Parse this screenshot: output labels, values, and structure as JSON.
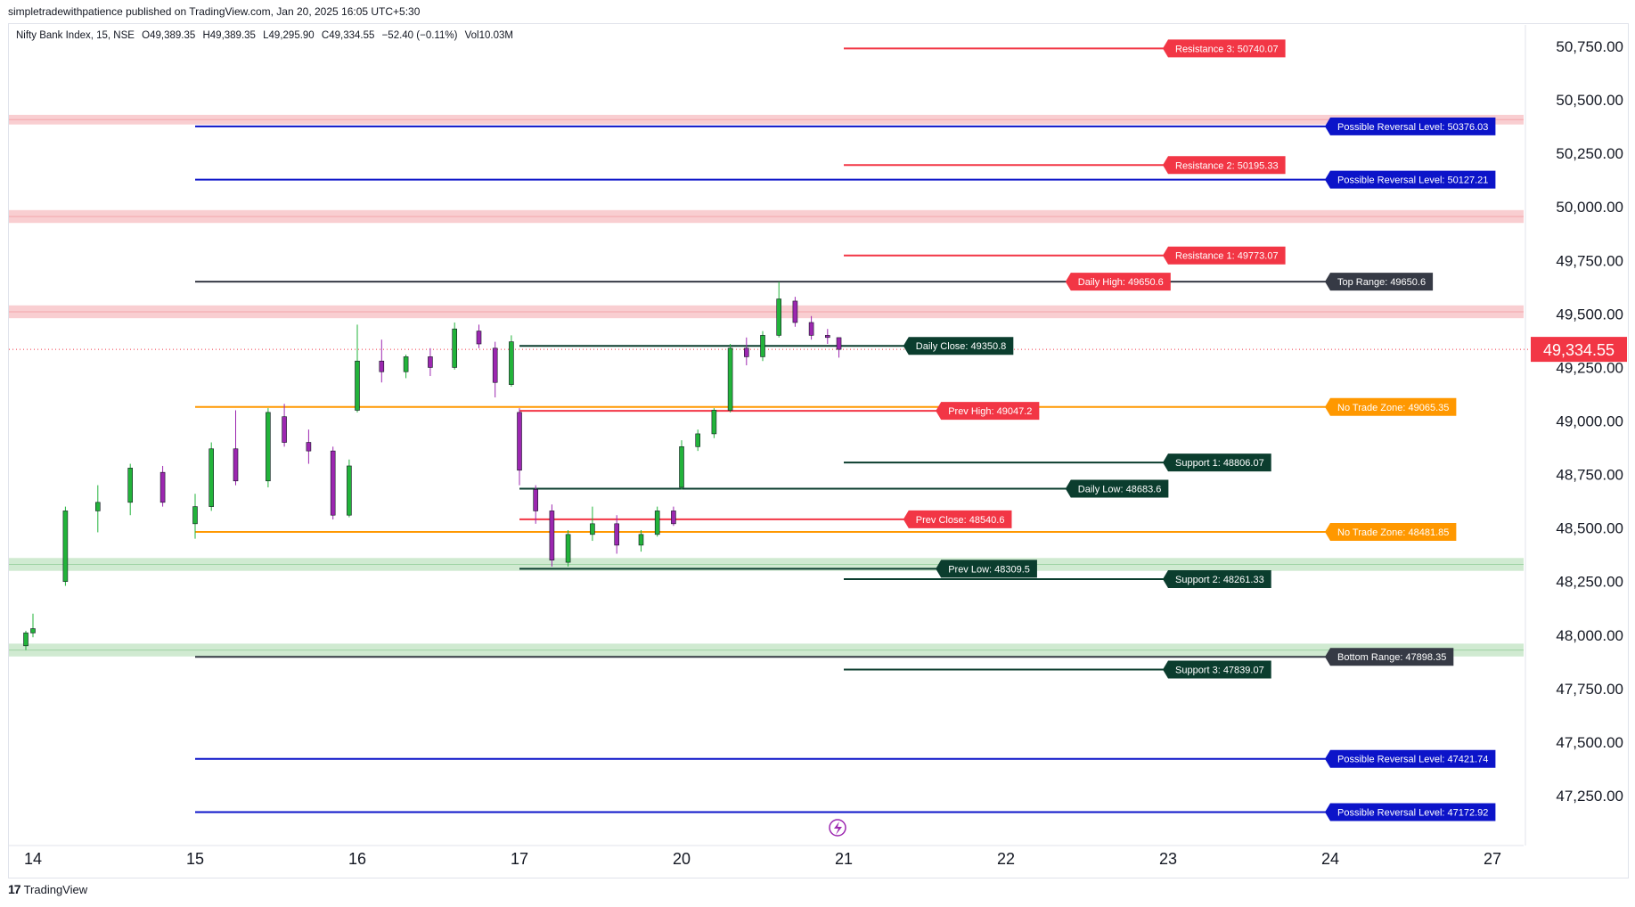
{
  "header": {
    "published": "simpletradewithpatience published on TradingView.com, Jan 20, 2025 16:05 UTC+5:30"
  },
  "legend": {
    "symbol": "Nifty Bank Index, 15, NSE",
    "open": "O49,389.35",
    "high": "H49,389.35",
    "low": "L49,295.90",
    "close": "C49,334.55",
    "change": "−52.40 (−0.11%)",
    "volume": "Vol10.03M"
  },
  "footer": {
    "brand": "TradingView",
    "logo_text": "17"
  },
  "colors": {
    "up": "#089981",
    "up_fill": "#26c94a",
    "down": "#9c27b0",
    "red": "#f23645",
    "blue": "#0c14c9",
    "orange": "#ff9800",
    "darkgreen": "#0b3d2e",
    "black": "#131722",
    "pinkzone": "#f8c6c9",
    "greenzone": "#c8e6c9"
  },
  "chart_data": {
    "type": "candlestick",
    "title": "",
    "xlabel": "",
    "ylabel": "",
    "ylim": [
      47030,
      50800
    ],
    "x_ticks": [
      "14",
      "15",
      "16",
      "17",
      "20",
      "21",
      "22",
      "23",
      "24",
      "27"
    ],
    "y_ticks": [
      "50,750.00",
      "50,500.00",
      "50,250.00",
      "50,000.00",
      "49,750.00",
      "49,500.00",
      "49,250.00",
      "49,000.00",
      "48,750.00",
      "48,500.00",
      "48,250.00",
      "48,000.00",
      "47,750.00",
      "47,500.00",
      "47,250.00"
    ],
    "y_tick_values": [
      50750,
      50500,
      50250,
      50000,
      49750,
      49500,
      49250,
      49000,
      48750,
      48500,
      48250,
      48000,
      47750,
      47500,
      47250
    ],
    "last_price": "49,334.55",
    "last_price_value": 49334.55,
    "zones": [
      {
        "color": "pink",
        "from": 50385,
        "to": 50430
      },
      {
        "color": "pink",
        "from": 49925,
        "to": 49985
      },
      {
        "color": "pink",
        "from": 49480,
        "to": 49540
      },
      {
        "color": "green",
        "from": 48300,
        "to": 48360
      },
      {
        "color": "green",
        "from": 47900,
        "to": 47960
      }
    ],
    "levels": [
      {
        "label": "Resistance 3: 50740.07",
        "value": 50740.07,
        "color": "red",
        "from": "21",
        "to": "23",
        "side": "right"
      },
      {
        "label": "Possible Reversal Level: 50376.03",
        "value": 50376.03,
        "color": "blue",
        "from": "15",
        "to": "24",
        "side": "right"
      },
      {
        "label": "Resistance 2: 50195.33",
        "value": 50195.33,
        "color": "red",
        "from": "21",
        "to": "23",
        "side": "right"
      },
      {
        "label": "Possible Reversal Level: 50127.21",
        "value": 50127.21,
        "color": "blue",
        "from": "15",
        "to": "24",
        "side": "right"
      },
      {
        "label": "Resistance 1: 49773.07",
        "value": 49773.07,
        "color": "red",
        "from": "21",
        "to": "23",
        "side": "right"
      },
      {
        "label": "Daily High: 49650.6",
        "value": 49650.6,
        "color": "red",
        "from": "15",
        "to": "22.4",
        "side": "right",
        "linecolor": "black"
      },
      {
        "label": "Top Range: 49650.6",
        "value": 49650.6,
        "color": "black",
        "from": "22.4",
        "to": "24",
        "side": "right"
      },
      {
        "label": "Daily Close: 49350.8",
        "value": 49350.8,
        "color": "darkgreen",
        "from": "17",
        "to": "21.4",
        "side": "right",
        "linecolor": "darkgreen"
      },
      {
        "label": "Prev High: 49047.2",
        "value": 49047.2,
        "color": "red",
        "from": "17",
        "to": "21.6",
        "side": "right"
      },
      {
        "label": "No Trade Zone: 49065.35",
        "value": 49065.35,
        "color": "orange",
        "from": "15",
        "to": "24",
        "side": "right"
      },
      {
        "label": "Support 1: 48806.07",
        "value": 48806.07,
        "color": "darkgreen",
        "from": "21",
        "to": "23",
        "side": "right"
      },
      {
        "label": "Daily Low: 48683.6",
        "value": 48683.6,
        "color": "darkgreen",
        "from": "17",
        "to": "22.4",
        "side": "right"
      },
      {
        "label": "Prev Close: 48540.6",
        "value": 48540.6,
        "color": "red",
        "from": "17",
        "to": "21.4",
        "side": "right"
      },
      {
        "label": "No Trade Zone: 48481.85",
        "value": 48481.85,
        "color": "orange",
        "from": "15",
        "to": "24",
        "side": "right"
      },
      {
        "label": "Prev Low: 48309.5",
        "value": 48309.5,
        "color": "darkgreen",
        "from": "17",
        "to": "21.6",
        "side": "right"
      },
      {
        "label": "Support 2: 48261.33",
        "value": 48261.33,
        "color": "darkgreen",
        "from": "21",
        "to": "23",
        "side": "right"
      },
      {
        "label": "Bottom Range: 47898.35",
        "value": 47898.35,
        "color": "black",
        "from": "15",
        "to": "24",
        "side": "right"
      },
      {
        "label": "Support 3: 47839.07",
        "value": 47839.07,
        "color": "darkgreen",
        "from": "21",
        "to": "23",
        "side": "right"
      },
      {
        "label": "Possible Reversal Level: 47421.74",
        "value": 47421.74,
        "color": "blue",
        "from": "15",
        "to": "24",
        "side": "right"
      },
      {
        "label": "Possible Reversal Level: 47172.92",
        "value": 47172.92,
        "color": "blue",
        "from": "15",
        "to": "24",
        "side": "right"
      }
    ],
    "candles": [
      {
        "d": "14",
        "o": 47950,
        "h": 48020,
        "l": 47930,
        "c": 48010
      },
      {
        "d": "14",
        "o": 48010,
        "h": 48100,
        "l": 47990,
        "c": 48030
      },
      {
        "d": "14.2",
        "o": 48250,
        "h": 48600,
        "l": 48230,
        "c": 48580
      },
      {
        "d": "14.4",
        "o": 48580,
        "h": 48700,
        "l": 48480,
        "c": 48620
      },
      {
        "d": "14.6",
        "o": 48620,
        "h": 48800,
        "l": 48560,
        "c": 48780
      },
      {
        "d": "14.8",
        "o": 48760,
        "h": 48790,
        "l": 48600,
        "c": 48620
      },
      {
        "d": "15",
        "o": 48520,
        "h": 48660,
        "l": 48450,
        "c": 48600
      },
      {
        "d": "15.1",
        "o": 48600,
        "h": 48900,
        "l": 48580,
        "c": 48870
      },
      {
        "d": "15.25",
        "o": 48870,
        "h": 49050,
        "l": 48700,
        "c": 48720
      },
      {
        "d": "15.45",
        "o": 48720,
        "h": 49060,
        "l": 48690,
        "c": 49040
      },
      {
        "d": "15.55",
        "o": 49020,
        "h": 49080,
        "l": 48880,
        "c": 48900
      },
      {
        "d": "15.7",
        "o": 48900,
        "h": 48960,
        "l": 48800,
        "c": 48860
      },
      {
        "d": "15.85",
        "o": 48860,
        "h": 48880,
        "l": 48540,
        "c": 48560
      },
      {
        "d": "15.95",
        "o": 48560,
        "h": 48820,
        "l": 48550,
        "c": 48790
      },
      {
        "d": "16",
        "o": 49050,
        "h": 49450,
        "l": 49040,
        "c": 49280
      },
      {
        "d": "16.15",
        "o": 49280,
        "h": 49380,
        "l": 49180,
        "c": 49230
      },
      {
        "d": "16.3",
        "o": 49230,
        "h": 49310,
        "l": 49200,
        "c": 49300
      },
      {
        "d": "16.45",
        "o": 49300,
        "h": 49340,
        "l": 49210,
        "c": 49250
      },
      {
        "d": "16.6",
        "o": 49250,
        "h": 49460,
        "l": 49240,
        "c": 49430
      },
      {
        "d": "16.75",
        "o": 49420,
        "h": 49450,
        "l": 49340,
        "c": 49360
      },
      {
        "d": "16.85",
        "o": 49340,
        "h": 49370,
        "l": 49110,
        "c": 49180
      },
      {
        "d": "16.95",
        "o": 49170,
        "h": 49400,
        "l": 49160,
        "c": 49370
      },
      {
        "d": "17",
        "o": 49040,
        "h": 49060,
        "l": 48700,
        "c": 48770
      },
      {
        "d": "17.1",
        "o": 48680,
        "h": 48700,
        "l": 48520,
        "c": 48580
      },
      {
        "d": "17.2",
        "o": 48580,
        "h": 48610,
        "l": 48320,
        "c": 48350
      },
      {
        "d": "17.3",
        "o": 48340,
        "h": 48490,
        "l": 48320,
        "c": 48470
      },
      {
        "d": "17.45",
        "o": 48470,
        "h": 48600,
        "l": 48440,
        "c": 48520
      },
      {
        "d": "17.6",
        "o": 48520,
        "h": 48560,
        "l": 48380,
        "c": 48420
      },
      {
        "d": "17.75",
        "o": 48420,
        "h": 48490,
        "l": 48390,
        "c": 48470
      },
      {
        "d": "17.85",
        "o": 48470,
        "h": 48600,
        "l": 48460,
        "c": 48580
      },
      {
        "d": "17.95",
        "o": 48580,
        "h": 48600,
        "l": 48510,
        "c": 48520
      },
      {
        "d": "20",
        "o": 48690,
        "h": 48910,
        "l": 48680,
        "c": 48880
      },
      {
        "d": "20.1",
        "o": 48880,
        "h": 48960,
        "l": 48860,
        "c": 48940
      },
      {
        "d": "20.2",
        "o": 48940,
        "h": 49060,
        "l": 48920,
        "c": 49050
      },
      {
        "d": "20.3",
        "o": 49050,
        "h": 49360,
        "l": 49040,
        "c": 49340
      },
      {
        "d": "20.4",
        "o": 49340,
        "h": 49390,
        "l": 49260,
        "c": 49300
      },
      {
        "d": "20.5",
        "o": 49300,
        "h": 49420,
        "l": 49280,
        "c": 49400
      },
      {
        "d": "20.6",
        "o": 49400,
        "h": 49650,
        "l": 49390,
        "c": 49570
      },
      {
        "d": "20.7",
        "o": 49560,
        "h": 49580,
        "l": 49440,
        "c": 49460
      },
      {
        "d": "20.8",
        "o": 49460,
        "h": 49490,
        "l": 49380,
        "c": 49400
      },
      {
        "d": "20.9",
        "o": 49400,
        "h": 49430,
        "l": 49360,
        "c": 49390
      },
      {
        "d": "20.97",
        "o": 49389.35,
        "h": 49389.35,
        "l": 49295.9,
        "c": 49334.55
      }
    ]
  }
}
